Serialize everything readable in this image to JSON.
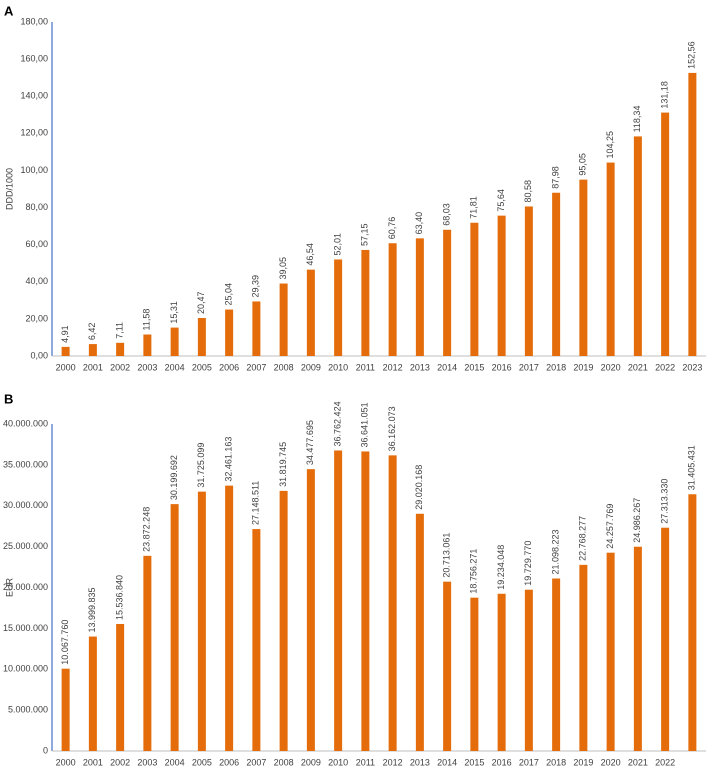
{
  "chart_data": [
    {
      "type": "bar",
      "panel_label": "A",
      "ylabel": "DDD/1000",
      "color": "#e46c0a",
      "grid": false,
      "categories": [
        "2000",
        "2001",
        "2002",
        "2003",
        "2004",
        "2005",
        "2006",
        "2007",
        "2008",
        "2009",
        "2010",
        "2011",
        "2012",
        "2013",
        "2014",
        "2015",
        "2016",
        "2017",
        "2018",
        "2019",
        "2020",
        "2021",
        "2022",
        "2023"
      ],
      "values": [
        4.91,
        6.42,
        7.11,
        11.58,
        15.31,
        20.47,
        25.04,
        29.39,
        39.05,
        46.54,
        52.01,
        57.15,
        60.76,
        63.4,
        68.03,
        71.81,
        75.64,
        80.58,
        87.98,
        95.05,
        104.25,
        118.34,
        131.18,
        152.56
      ],
      "value_labels": [
        "4,91",
        "6,42",
        "7,11",
        "11,58",
        "15,31",
        "20,47",
        "25,04",
        "29,39",
        "39,05",
        "46,54",
        "52,01",
        "57,15",
        "60,76",
        "63,40",
        "68,03",
        "71,81",
        "75,64",
        "80,58",
        "87,98",
        "95,05",
        "104,25",
        "118,34",
        "131,18",
        "152,56"
      ],
      "ylim": [
        0,
        180
      ],
      "yticks": [
        {
          "value": 0,
          "label": "0,00"
        },
        {
          "value": 20,
          "label": "20,00"
        },
        {
          "value": 40,
          "label": "40,00"
        },
        {
          "value": 60,
          "label": "60,00"
        },
        {
          "value": 80,
          "label": "80,00"
        },
        {
          "value": 100,
          "label": "100,00"
        },
        {
          "value": 120,
          "label": "120,00"
        },
        {
          "value": 140,
          "label": "140,00"
        },
        {
          "value": 160,
          "label": "160,00"
        },
        {
          "value": 180,
          "label": "180,00"
        }
      ]
    },
    {
      "type": "bar",
      "panel_label": "B",
      "ylabel": "EUR",
      "color": "#e46c0a",
      "grid": false,
      "categories": [
        "2000",
        "2001",
        "2002",
        "2003",
        "2004",
        "2005",
        "2006",
        "2007",
        "2008",
        "2009",
        "2010",
        "2011",
        "2012",
        "2013",
        "2014",
        "2015",
        "2016",
        "2017",
        "2018",
        "2019",
        "2020",
        "2021",
        "2022",
        null
      ],
      "values": [
        10067760,
        13999835,
        15536840,
        23872248,
        30199692,
        31725099,
        32461163,
        27148511,
        31819745,
        34477695,
        36762424,
        36641051,
        36162073,
        29020168,
        20713061,
        18756271,
        19234048,
        19729770,
        21098223,
        22768277,
        24257769,
        24986267,
        27313330,
        31405431
      ],
      "value_labels": [
        "10.067.760",
        "13.999.835",
        "15.536.840",
        "23.872.248",
        "30.199.692",
        "31.725.099",
        "32.461.163",
        "27.148.511",
        "31.819.745",
        "34.477.695",
        "36.762.424",
        "36.641.051",
        "36.162.073",
        "29.020.168",
        "20.713.061",
        "18.756.271",
        "19.234.048",
        "19.729.770",
        "21.098.223",
        "22.768.277",
        "24.257.769",
        "24.986.267",
        "27.313.330",
        "31.405.431"
      ],
      "ylim": [
        0,
        40000000
      ],
      "yticks": [
        0,
        {
          "value": 5000000,
          "label": "5.000.000"
        },
        {
          "value": 10000000,
          "label": "10.000.000"
        },
        {
          "value": 15000000,
          "label": "15.000.000"
        },
        {
          "value": 20000000,
          "label": "20.000.000"
        },
        {
          "value": 25000000,
          "label": "25.000.000"
        },
        {
          "value": 30000000,
          "label": "30.000.000"
        },
        {
          "value": 35000000,
          "label": "35.000.000"
        },
        {
          "value": 40000000,
          "label": "40.000.000"
        }
      ]
    }
  ]
}
